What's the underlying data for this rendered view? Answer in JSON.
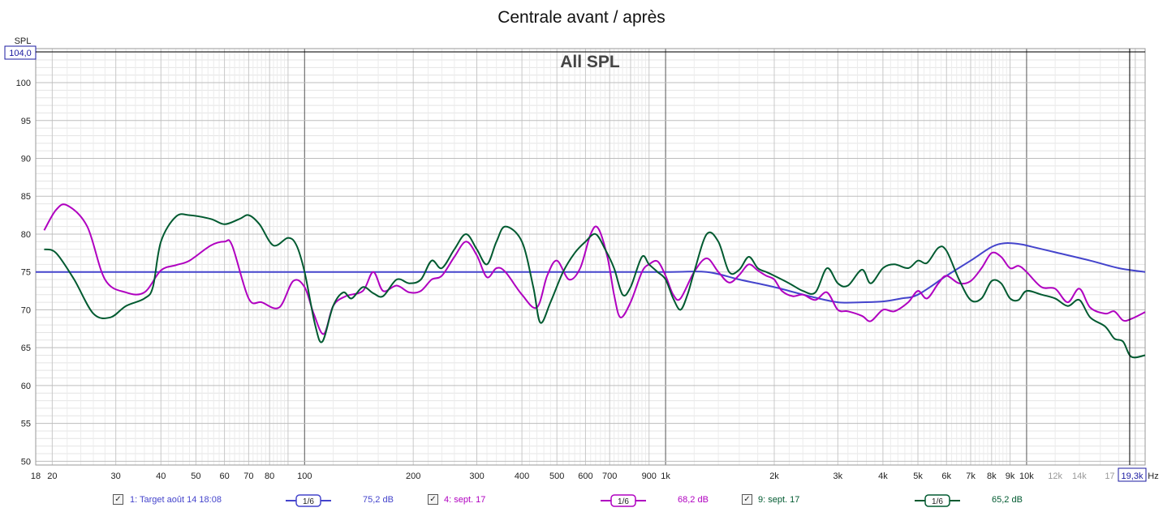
{
  "title": "Centrale avant / après",
  "graph_label": "All SPL",
  "y_axis_label": "SPL",
  "x_axis_unit": "Hz",
  "y_cursor_value": "104,0",
  "x_cursor_value": "19,3k",
  "chart_data": {
    "type": "line",
    "xscale": "log",
    "xlim": [
      18,
      21300
    ],
    "ylim": [
      49.5,
      104.5
    ],
    "grid": true,
    "yticks": [
      50,
      55,
      60,
      65,
      70,
      75,
      80,
      85,
      90,
      95,
      100
    ],
    "xticks": [
      {
        "v": 18,
        "l": "18"
      },
      {
        "v": 20,
        "l": "20"
      },
      {
        "v": 30,
        "l": "30"
      },
      {
        "v": 40,
        "l": "40"
      },
      {
        "v": 50,
        "l": "50"
      },
      {
        "v": 60,
        "l": "60"
      },
      {
        "v": 70,
        "l": "70"
      },
      {
        "v": 80,
        "l": "80"
      },
      {
        "v": 100,
        "l": "100"
      },
      {
        "v": 200,
        "l": "200"
      },
      {
        "v": 300,
        "l": "300"
      },
      {
        "v": 400,
        "l": "400"
      },
      {
        "v": 500,
        "l": "500"
      },
      {
        "v": 600,
        "l": "600"
      },
      {
        "v": 700,
        "l": "700"
      },
      {
        "v": 900,
        "l": "900"
      },
      {
        "v": 1000,
        "l": "1k"
      },
      {
        "v": 2000,
        "l": "2k"
      },
      {
        "v": 3000,
        "l": "3k"
      },
      {
        "v": 4000,
        "l": "4k"
      },
      {
        "v": 5000,
        "l": "5k"
      },
      {
        "v": 6000,
        "l": "6k"
      },
      {
        "v": 7000,
        "l": "7k"
      },
      {
        "v": 8000,
        "l": "8k"
      },
      {
        "v": 9000,
        "l": "9k"
      },
      {
        "v": 10000,
        "l": "10k"
      },
      {
        "v": 12000,
        "l": "12k",
        "grey": true
      },
      {
        "v": 14000,
        "l": "14k",
        "grey": true
      },
      {
        "v": 17000,
        "l": "17",
        "grey": true
      }
    ],
    "series": [
      {
        "name": "1: Target août 14 18:08",
        "color": "#4444cc",
        "smoothing": "1/6",
        "level": "75,2 dB",
        "points": [
          [
            18,
            75
          ],
          [
            500,
            75
          ],
          [
            1000,
            75
          ],
          [
            1300,
            75
          ],
          [
            1600,
            74
          ],
          [
            2000,
            73
          ],
          [
            2500,
            71.8
          ],
          [
            3000,
            71
          ],
          [
            3500,
            71
          ],
          [
            4000,
            71.1
          ],
          [
            4500,
            71.5
          ],
          [
            5000,
            72
          ],
          [
            6000,
            74.5
          ],
          [
            7000,
            76.5
          ],
          [
            8000,
            78.3
          ],
          [
            8700,
            78.8
          ],
          [
            9500,
            78.7
          ],
          [
            10000,
            78.5
          ],
          [
            12000,
            77.6
          ],
          [
            15000,
            76.5
          ],
          [
            18000,
            75.5
          ],
          [
            21300,
            75
          ]
        ]
      },
      {
        "name": "4: sept. 17",
        "color": "#b000c0",
        "smoothing": "1/6",
        "level": "68,2 dB",
        "points": [
          [
            19,
            80.5
          ],
          [
            20.5,
            83.2
          ],
          [
            22,
            83.8
          ],
          [
            25,
            81
          ],
          [
            28,
            74
          ],
          [
            32,
            72.3
          ],
          [
            36,
            72.3
          ],
          [
            40,
            75.2
          ],
          [
            44,
            75.9
          ],
          [
            48,
            76.5
          ],
          [
            55,
            78.5
          ],
          [
            60,
            79
          ],
          [
            63,
            78.5
          ],
          [
            70,
            71.5
          ],
          [
            76,
            71
          ],
          [
            85,
            70.3
          ],
          [
            93,
            73.8
          ],
          [
            100,
            73
          ],
          [
            106,
            69.5
          ],
          [
            113,
            66.8
          ],
          [
            120,
            70.5
          ],
          [
            130,
            71.8
          ],
          [
            145,
            72.5
          ],
          [
            155,
            75
          ],
          [
            165,
            72.5
          ],
          [
            180,
            73.2
          ],
          [
            195,
            72.3
          ],
          [
            210,
            72.5
          ],
          [
            225,
            74
          ],
          [
            240,
            74.5
          ],
          [
            260,
            77
          ],
          [
            280,
            79
          ],
          [
            300,
            77.2
          ],
          [
            320,
            74.3
          ],
          [
            340,
            75.5
          ],
          [
            360,
            75
          ],
          [
            400,
            72
          ],
          [
            440,
            70.3
          ],
          [
            470,
            74.5
          ],
          [
            500,
            76.5
          ],
          [
            540,
            74
          ],
          [
            580,
            75.5
          ],
          [
            620,
            80
          ],
          [
            650,
            80.8
          ],
          [
            690,
            77
          ],
          [
            720,
            72
          ],
          [
            750,
            69
          ],
          [
            800,
            71
          ],
          [
            860,
            75
          ],
          [
            900,
            76
          ],
          [
            950,
            76.4
          ],
          [
            1000,
            74.5
          ],
          [
            1050,
            72
          ],
          [
            1100,
            71.5
          ],
          [
            1200,
            75
          ],
          [
            1300,
            76.8
          ],
          [
            1400,
            75
          ],
          [
            1500,
            73.6
          ],
          [
            1600,
            74.6
          ],
          [
            1700,
            76
          ],
          [
            1800,
            75.2
          ],
          [
            1900,
            74.5
          ],
          [
            2000,
            74
          ],
          [
            2100,
            72.5
          ],
          [
            2250,
            71.8
          ],
          [
            2400,
            72
          ],
          [
            2600,
            71.3
          ],
          [
            2800,
            72.3
          ],
          [
            3000,
            70
          ],
          [
            3200,
            69.8
          ],
          [
            3500,
            69.2
          ],
          [
            3700,
            68.5
          ],
          [
            4000,
            70
          ],
          [
            4300,
            69.8
          ],
          [
            4700,
            71
          ],
          [
            5000,
            72.5
          ],
          [
            5300,
            71.5
          ],
          [
            5700,
            73.5
          ],
          [
            6000,
            74.5
          ],
          [
            6500,
            73.5
          ],
          [
            7000,
            73.8
          ],
          [
            7500,
            75.5
          ],
          [
            8000,
            77.5
          ],
          [
            8500,
            77
          ],
          [
            9000,
            75.5
          ],
          [
            9500,
            75.8
          ],
          [
            10000,
            75
          ],
          [
            11000,
            73
          ],
          [
            12000,
            72.8
          ],
          [
            13000,
            71
          ],
          [
            14000,
            72.8
          ],
          [
            15000,
            70.3
          ],
          [
            16500,
            69.5
          ],
          [
            17500,
            69.8
          ],
          [
            18500,
            68.6
          ],
          [
            19500,
            68.8
          ],
          [
            21300,
            69.7
          ]
        ]
      },
      {
        "name": "9: sept. 17",
        "color": "#005a30",
        "smoothing": "1/6",
        "level": "65,2 dB",
        "points": [
          [
            19,
            78
          ],
          [
            20.5,
            77.5
          ],
          [
            23,
            74
          ],
          [
            26,
            69.5
          ],
          [
            29,
            69
          ],
          [
            32,
            70.5
          ],
          [
            36,
            71.5
          ],
          [
            38,
            73
          ],
          [
            40,
            79
          ],
          [
            44,
            82.3
          ],
          [
            48,
            82.5
          ],
          [
            55,
            82
          ],
          [
            60,
            81.3
          ],
          [
            66,
            82
          ],
          [
            70,
            82.5
          ],
          [
            75,
            81.3
          ],
          [
            82,
            78.5
          ],
          [
            90,
            79.5
          ],
          [
            95,
            78.5
          ],
          [
            100,
            75
          ],
          [
            107,
            68
          ],
          [
            112,
            65.8
          ],
          [
            120,
            70.5
          ],
          [
            128,
            72.3
          ],
          [
            135,
            71.5
          ],
          [
            145,
            73
          ],
          [
            155,
            72.2
          ],
          [
            165,
            71.8
          ],
          [
            180,
            74
          ],
          [
            195,
            73.5
          ],
          [
            210,
            74
          ],
          [
            225,
            76.5
          ],
          [
            240,
            75.5
          ],
          [
            260,
            78
          ],
          [
            280,
            80
          ],
          [
            300,
            78
          ],
          [
            320,
            76
          ],
          [
            340,
            79
          ],
          [
            360,
            81
          ],
          [
            400,
            79
          ],
          [
            430,
            73
          ],
          [
            450,
            68.3
          ],
          [
            480,
            71
          ],
          [
            520,
            75
          ],
          [
            560,
            77.5
          ],
          [
            600,
            79
          ],
          [
            640,
            80
          ],
          [
            680,
            78
          ],
          [
            720,
            75.5
          ],
          [
            760,
            72
          ],
          [
            800,
            73
          ],
          [
            860,
            77
          ],
          [
            900,
            76
          ],
          [
            950,
            75
          ],
          [
            1000,
            74
          ],
          [
            1050,
            71.5
          ],
          [
            1100,
            70
          ],
          [
            1150,
            72
          ],
          [
            1200,
            75
          ],
          [
            1300,
            80
          ],
          [
            1400,
            79
          ],
          [
            1500,
            75
          ],
          [
            1600,
            75.3
          ],
          [
            1700,
            77
          ],
          [
            1800,
            75.5
          ],
          [
            1900,
            75
          ],
          [
            2000,
            74.5
          ],
          [
            2200,
            73.5
          ],
          [
            2400,
            72.5
          ],
          [
            2600,
            72.3
          ],
          [
            2800,
            75.5
          ],
          [
            3000,
            73.5
          ],
          [
            3200,
            73.2
          ],
          [
            3500,
            75.3
          ],
          [
            3700,
            73.5
          ],
          [
            4000,
            75.5
          ],
          [
            4300,
            76
          ],
          [
            4700,
            75.5
          ],
          [
            5000,
            76.5
          ],
          [
            5300,
            76.2
          ],
          [
            5700,
            78.2
          ],
          [
            6000,
            77.8
          ],
          [
            6500,
            74
          ],
          [
            7000,
            71.3
          ],
          [
            7500,
            71.5
          ],
          [
            8000,
            73.8
          ],
          [
            8500,
            73.5
          ],
          [
            9000,
            71.5
          ],
          [
            9500,
            71.3
          ],
          [
            10000,
            72.5
          ],
          [
            11000,
            72
          ],
          [
            12000,
            71.5
          ],
          [
            13000,
            70.5
          ],
          [
            14000,
            71.3
          ],
          [
            15000,
            69
          ],
          [
            16500,
            67.8
          ],
          [
            17500,
            66.2
          ],
          [
            18500,
            65.8
          ],
          [
            19500,
            63.8
          ],
          [
            21300,
            64
          ]
        ]
      }
    ]
  }
}
